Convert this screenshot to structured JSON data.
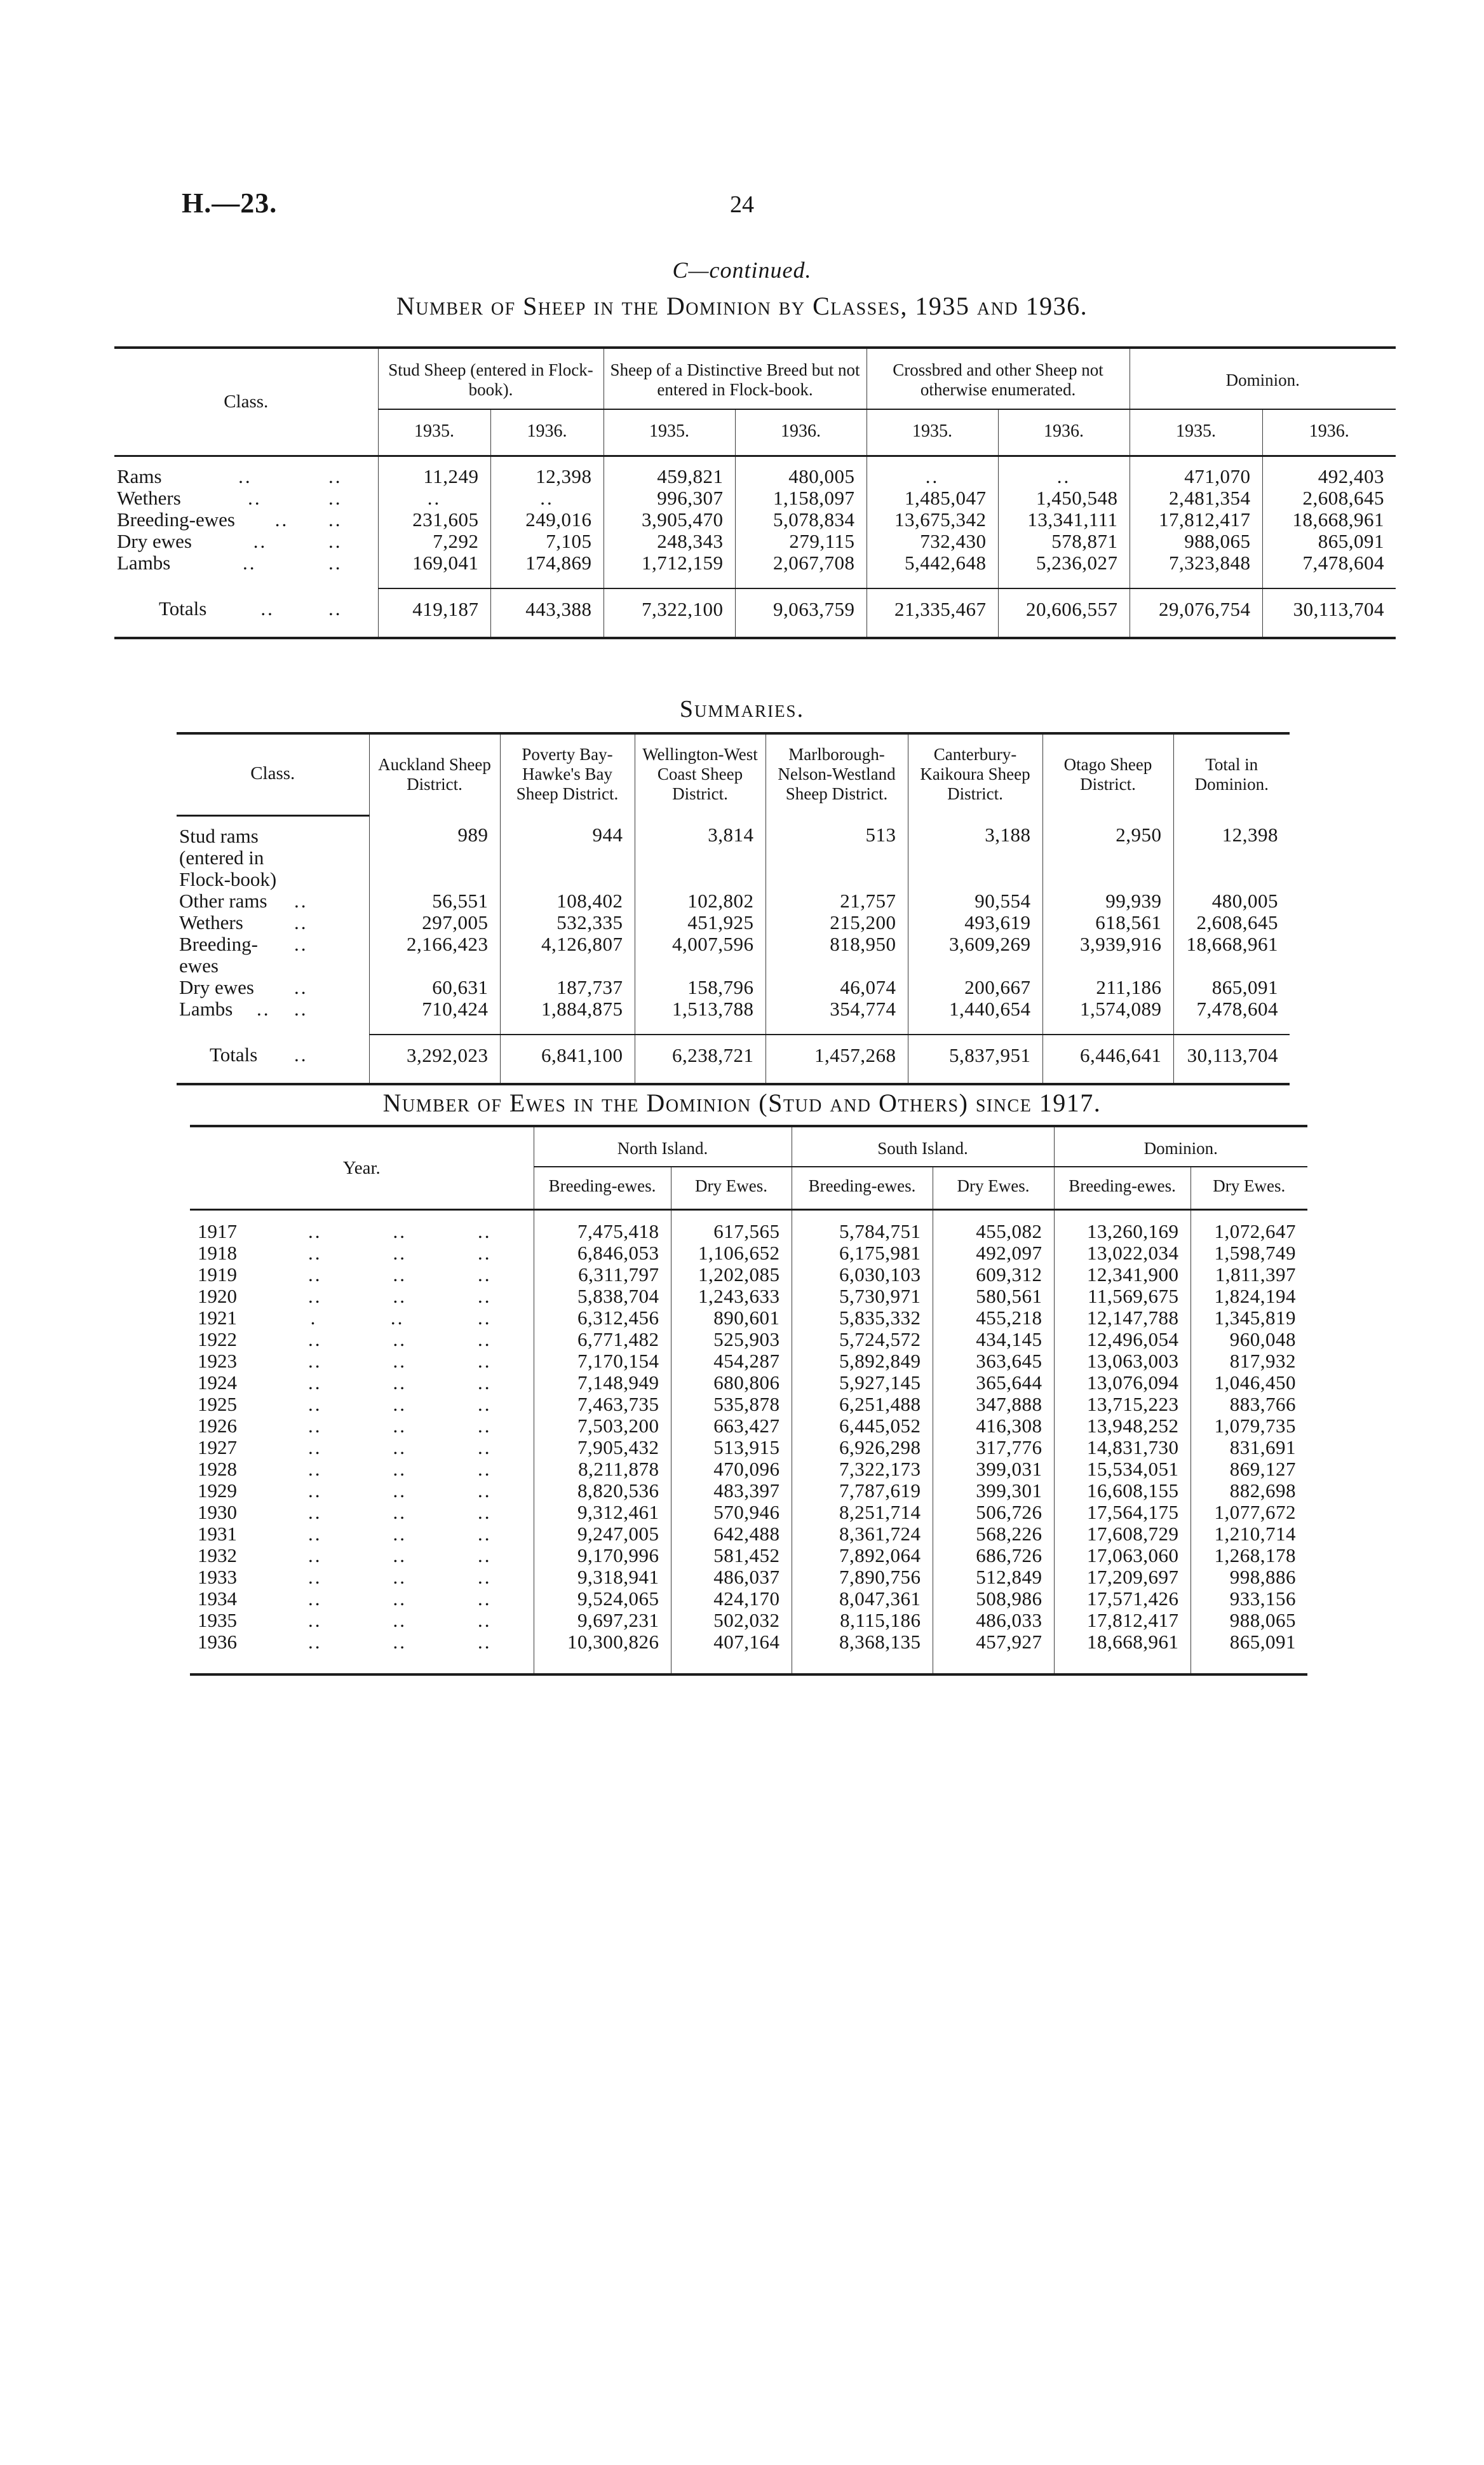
{
  "page": {
    "doc_ref": "H.—23.",
    "page_number": "24",
    "continued": "C—continued."
  },
  "t1": {
    "title": "Number of Sheep in the Dominion by Classes, 1935 and 1936.",
    "class_header": "Class.",
    "years": [
      "1935.",
      "1936."
    ],
    "groups": [
      "Stud Sheep (entered in Flock-book).",
      "Sheep of a Distinctive Breed but not entered in Flock-book.",
      "Crossbred and other Sheep not otherwise enumerated.",
      "Dominion."
    ],
    "rows": [
      {
        "label": "Rams",
        "leaders": [
          "..",
          ".."
        ],
        "values": [
          "11,249",
          "12,398",
          "459,821",
          "480,005",
          "..",
          "..",
          "471,070",
          "492,403"
        ]
      },
      {
        "label": "Wethers",
        "leaders": [
          "..",
          ".."
        ],
        "values": [
          "..",
          "..",
          "996,307",
          "1,158,097",
          "1,485,047",
          "1,450,548",
          "2,481,354",
          "2,608,645"
        ]
      },
      {
        "label": "Breeding-ewes",
        "leaders": [
          "..",
          ".."
        ],
        "values": [
          "231,605",
          "249,016",
          "3,905,470",
          "5,078,834",
          "13,675,342",
          "13,341,111",
          "17,812,417",
          "18,668,961"
        ]
      },
      {
        "label": "Dry ewes",
        "leaders": [
          "..",
          ".."
        ],
        "values": [
          "7,292",
          "7,105",
          "248,343",
          "279,115",
          "732,430",
          "578,871",
          "988,065",
          "865,091"
        ]
      },
      {
        "label": "Lambs",
        "leaders": [
          "..",
          ".."
        ],
        "values": [
          "169,041",
          "174,869",
          "1,712,159",
          "2,067,708",
          "5,442,648",
          "5,236,027",
          "7,323,848",
          "7,478,604"
        ]
      }
    ],
    "totals_rows": [
      {
        "label": "Totals",
        "leaders": [
          "..",
          ".."
        ],
        "values": [
          "419,187",
          "443,388",
          "7,322,100",
          "9,063,759",
          "21,335,467",
          "20,606,557",
          "29,076,754",
          "30,113,704"
        ]
      }
    ]
  },
  "t2": {
    "title": "Summaries.",
    "class_header": "Class.",
    "columns": [
      "Auckland Sheep District.",
      "Poverty Bay-Hawke's Bay Sheep District.",
      "Wellington-West Coast Sheep District.",
      "Marlborough-Nelson-Westland Sheep District.",
      "Canterbury-Kaikoura Sheep District.",
      "Otago Sheep District.",
      "Total in Dominion."
    ],
    "rows": [
      {
        "label": "Stud rams (entered in Flock-book)",
        "leaders": [],
        "values": [
          "989",
          "944",
          "3,814",
          "513",
          "3,188",
          "2,950",
          "12,398"
        ]
      },
      {
        "label": "Other rams",
        "leaders": [
          ".."
        ],
        "values": [
          "56,551",
          "108,402",
          "102,802",
          "21,757",
          "90,554",
          "99,939",
          "480,005"
        ]
      },
      {
        "label": "Wethers",
        "leaders": [
          ".."
        ],
        "values": [
          "297,005",
          "532,335",
          "451,925",
          "215,200",
          "493,619",
          "618,561",
          "2,608,645"
        ]
      },
      {
        "label": "Breeding-ewes",
        "leaders": [
          ".."
        ],
        "values": [
          "2,166,423",
          "4,126,807",
          "4,007,596",
          "818,950",
          "3,609,269",
          "3,939,916",
          "18,668,961"
        ]
      },
      {
        "label": "Dry ewes",
        "leaders": [
          ".."
        ],
        "values": [
          "60,631",
          "187,737",
          "158,796",
          "46,074",
          "200,667",
          "211,186",
          "865,091"
        ]
      },
      {
        "label": "Lambs",
        "leaders": [
          "..",
          ".."
        ],
        "values": [
          "710,424",
          "1,884,875",
          "1,513,788",
          "354,774",
          "1,440,654",
          "1,574,089",
          "7,478,604"
        ]
      }
    ],
    "totals_rows": [
      {
        "label": "Totals",
        "leaders": [
          ".."
        ],
        "values": [
          "3,292,023",
          "6,841,100",
          "6,238,721",
          "1,457,268",
          "5,837,951",
          "6,446,641",
          "30,113,704"
        ]
      }
    ]
  },
  "t3": {
    "title": "Number of Ewes in the Dominion (Stud and Others) since 1917.",
    "year_header": "Year.",
    "groups": [
      "North Island.",
      "South Island.",
      "Dominion."
    ],
    "sub": [
      "Breeding-ewes.",
      "Dry Ewes."
    ],
    "rows": [
      {
        "label": "1917",
        "leaders": [
          "..",
          "..",
          ".."
        ],
        "values": [
          "7,475,418",
          "617,565",
          "5,784,751",
          "455,082",
          "13,260,169",
          "1,072,647"
        ]
      },
      {
        "label": "1918",
        "leaders": [
          "..",
          "..",
          ".."
        ],
        "values": [
          "6,846,053",
          "1,106,652",
          "6,175,981",
          "492,097",
          "13,022,034",
          "1,598,749"
        ]
      },
      {
        "label": "1919",
        "leaders": [
          "..",
          "..",
          ".."
        ],
        "values": [
          "6,311,797",
          "1,202,085",
          "6,030,103",
          "609,312",
          "12,341,900",
          "1,811,397"
        ]
      },
      {
        "label": "1920",
        "leaders": [
          "..",
          "..",
          ".."
        ],
        "values": [
          "5,838,704",
          "1,243,633",
          "5,730,971",
          "580,561",
          "11,569,675",
          "1,824,194"
        ]
      },
      {
        "label": "1921",
        "leaders": [
          ".",
          "..",
          ".."
        ],
        "values": [
          "6,312,456",
          "890,601",
          "5,835,332",
          "455,218",
          "12,147,788",
          "1,345,819"
        ]
      },
      {
        "label": "1922",
        "leaders": [
          "..",
          "..",
          ".."
        ],
        "values": [
          "6,771,482",
          "525,903",
          "5,724,572",
          "434,145",
          "12,496,054",
          "960,048"
        ]
      },
      {
        "label": "1923",
        "leaders": [
          "..",
          "..",
          ".."
        ],
        "values": [
          "7,170,154",
          "454,287",
          "5,892,849",
          "363,645",
          "13,063,003",
          "817,932"
        ]
      },
      {
        "label": "1924",
        "leaders": [
          "..",
          "..",
          ".."
        ],
        "values": [
          "7,148,949",
          "680,806",
          "5,927,145",
          "365,644",
          "13,076,094",
          "1,046,450"
        ]
      },
      {
        "label": "1925",
        "leaders": [
          "..",
          "..",
          ".."
        ],
        "values": [
          "7,463,735",
          "535,878",
          "6,251,488",
          "347,888",
          "13,715,223",
          "883,766"
        ]
      },
      {
        "label": "1926",
        "leaders": [
          "..",
          "..",
          ".."
        ],
        "values": [
          "7,503,200",
          "663,427",
          "6,445,052",
          "416,308",
          "13,948,252",
          "1,079,735"
        ]
      },
      {
        "label": "1927",
        "leaders": [
          "..",
          "..",
          ".."
        ],
        "values": [
          "7,905,432",
          "513,915",
          "6,926,298",
          "317,776",
          "14,831,730",
          "831,691"
        ]
      },
      {
        "label": "1928",
        "leaders": [
          "..",
          "..",
          ".."
        ],
        "values": [
          "8,211,878",
          "470,096",
          "7,322,173",
          "399,031",
          "15,534,051",
          "869,127"
        ]
      },
      {
        "label": "1929",
        "leaders": [
          "..",
          "..",
          ".."
        ],
        "values": [
          "8,820,536",
          "483,397",
          "7,787,619",
          "399,301",
          "16,608,155",
          "882,698"
        ]
      },
      {
        "label": "1930",
        "leaders": [
          "..",
          "..",
          ".."
        ],
        "values": [
          "9,312,461",
          "570,946",
          "8,251,714",
          "506,726",
          "17,564,175",
          "1,077,672"
        ]
      },
      {
        "label": "1931",
        "leaders": [
          "..",
          "..",
          ".."
        ],
        "values": [
          "9,247,005",
          "642,488",
          "8,361,724",
          "568,226",
          "17,608,729",
          "1,210,714"
        ]
      },
      {
        "label": "1932",
        "leaders": [
          "..",
          "..",
          ".."
        ],
        "values": [
          "9,170,996",
          "581,452",
          "7,892,064",
          "686,726",
          "17,063,060",
          "1,268,178"
        ]
      },
      {
        "label": "1933",
        "leaders": [
          "..",
          "..",
          ".."
        ],
        "values": [
          "9,318,941",
          "486,037",
          "7,890,756",
          "512,849",
          "17,209,697",
          "998,886"
        ]
      },
      {
        "label": "1934",
        "leaders": [
          "..",
          "..",
          ".."
        ],
        "values": [
          "9,524,065",
          "424,170",
          "8,047,361",
          "508,986",
          "17,571,426",
          "933,156"
        ]
      },
      {
        "label": "1935",
        "leaders": [
          "..",
          "..",
          ".."
        ],
        "values": [
          "9,697,231",
          "502,032",
          "8,115,186",
          "486,033",
          "17,812,417",
          "988,065"
        ]
      },
      {
        "label": "1936",
        "leaders": [
          "..",
          "..",
          ".."
        ],
        "values": [
          "10,300,826",
          "407,164",
          "8,368,135",
          "457,927",
          "18,668,961",
          "865,091"
        ]
      }
    ]
  }
}
